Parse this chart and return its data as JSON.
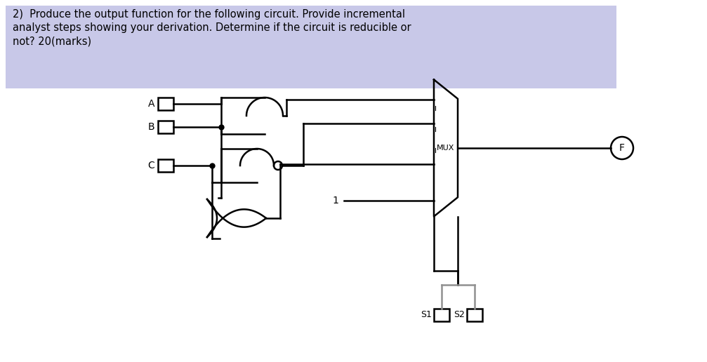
{
  "title_line1": "2)  Produce the output function for the following circuit. Provide incremental",
  "title_line2": "analyst steps showing your derivation. Determine if the circuit is reducible or",
  "title_line3": "not? 20(marks)",
  "highlight_color": "#c8c8e8",
  "text_color": "#000000",
  "line_color": "#000000",
  "gray_color": "#909090",
  "bg_color": "#ffffff",
  "fig_width": 10.07,
  "fig_height": 5.16
}
